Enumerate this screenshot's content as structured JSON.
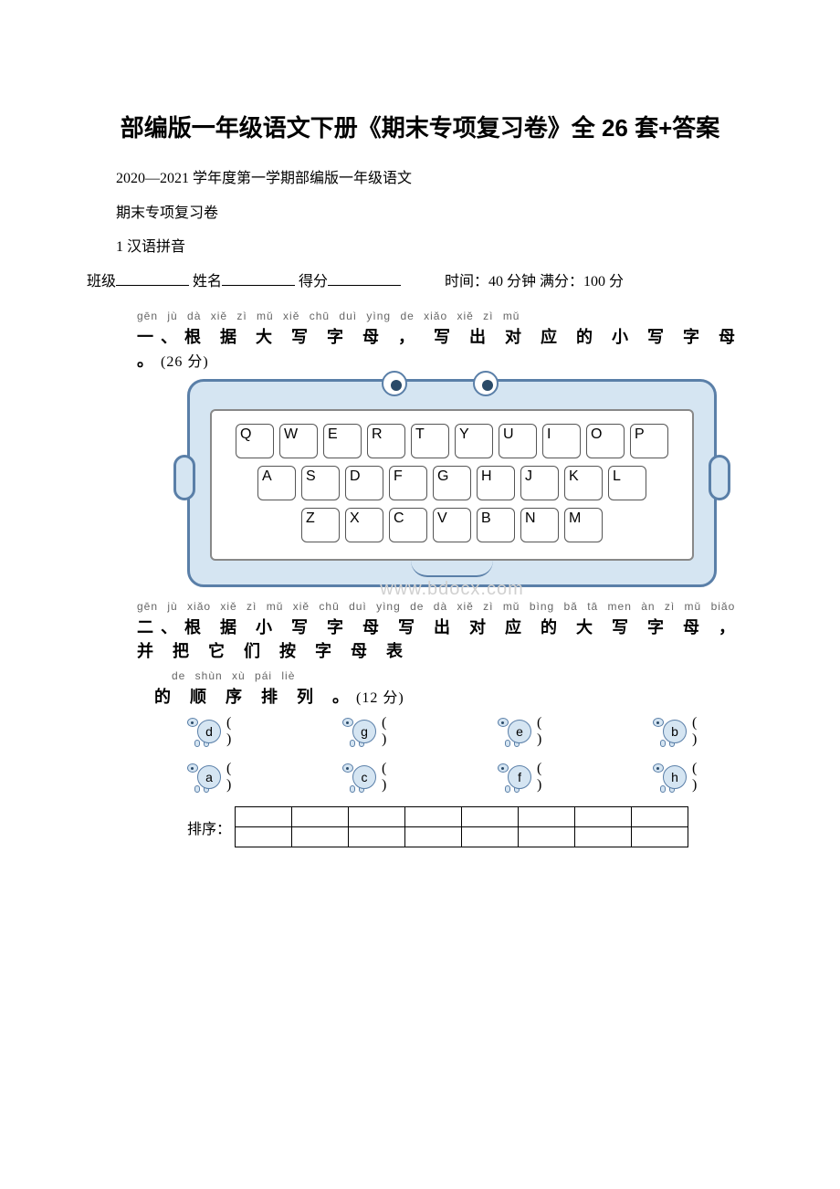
{
  "title": "部编版一年级语文下册《期末专项复习卷》全 26 套+答案",
  "line1": "2020—2021 学年度第一学期部编版一年级语文",
  "line2": "期末专项复习卷",
  "line3": "1 汉语拼音",
  "info": {
    "class_label": "班级",
    "name_label": "姓名",
    "score_label": "得分",
    "time_label": "时间：40 分钟 满分：100 分"
  },
  "sec1": {
    "pinyin": "gēn jù dà xiě zì mǔ    xiě chū duì yìng de xiǎo xiě zì mǔ",
    "hanzi": "一、根 据 大 写 字 母 ， 写 出 对 应 的 小 写 字 母 。",
    "score": "(26 分)"
  },
  "keyboard": {
    "row1": [
      "Q",
      "W",
      "E",
      "R",
      "T",
      "Y",
      "U",
      "I",
      "O",
      "P"
    ],
    "row2": [
      "A",
      "S",
      "D",
      "F",
      "G",
      "H",
      "J",
      "K",
      "L"
    ],
    "row3": [
      "Z",
      "X",
      "C",
      "V",
      "B",
      "N",
      "M"
    ]
  },
  "watermark": "www.bdocx.com",
  "sec2": {
    "pinyin1": "gēn jù xiǎo xiě zì mǔ xiě chū duì yìng de dà xiě zì mǔ    bìng bǎ tā men àn zì mǔ biǎo",
    "hanzi1": "二、根 据 小 写 字 母 写 出 对 应 的 大 写 字 母 ， 并 把 它 们 按 字 母 表",
    "pinyin2": "de shùn xù pái liè",
    "hanzi2": "的 顺 序 排 列 。",
    "score": "(12 分)"
  },
  "turtles": {
    "row1": [
      "d",
      "g",
      "e",
      "b"
    ],
    "row2": [
      "a",
      "c",
      "f",
      "h"
    ]
  },
  "sort_label": "排序：",
  "sort_cols": 8,
  "sort_rows": 2,
  "colors": {
    "kb_border": "#5a7fa8",
    "kb_fill": "#d5e5f2",
    "pinyin": "#666666",
    "watermark": "#d0d0d0"
  }
}
